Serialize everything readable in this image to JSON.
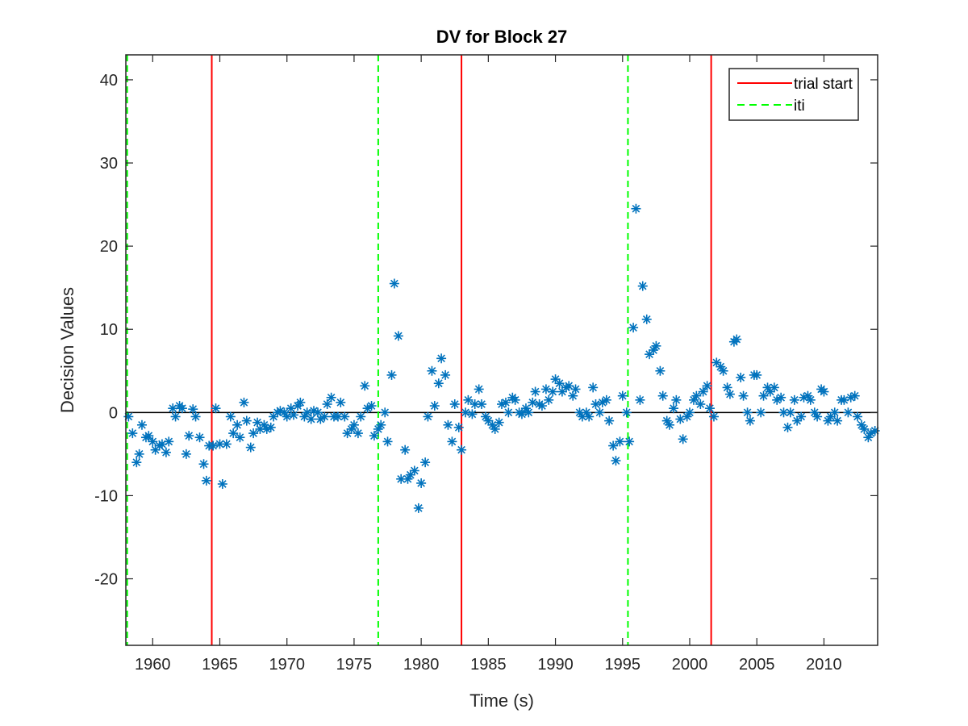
{
  "chart_data": {
    "type": "scatter",
    "title": "DV for Block 27",
    "xlabel": "Time (s)",
    "ylabel": "Decision Values",
    "xlim": [
      1958,
      2014
    ],
    "ylim": [
      -28,
      43
    ],
    "xticks": [
      1960,
      1965,
      1970,
      1975,
      1980,
      1985,
      1990,
      1995,
      2000,
      2005,
      2010
    ],
    "xtick_labels": [
      "1960",
      "1965",
      "1970",
      "1975",
      "1980",
      "1985",
      "1990",
      "1995",
      "2000",
      "2005",
      "2010"
    ],
    "yticks": [
      -20,
      -10,
      0,
      10,
      20,
      30,
      40
    ],
    "ytick_labels": [
      "-20",
      "-10",
      "0",
      "10",
      "20",
      "30",
      "40"
    ],
    "grid": false,
    "legend_position": "top-right",
    "legend": [
      {
        "label": "trial start",
        "color": "#ff0000",
        "style": "solid"
      },
      {
        "label": "iti",
        "color": "#00ff00",
        "style": "dashed"
      }
    ],
    "zero_line": {
      "y": 0,
      "color": "#000000"
    },
    "trial_start_lines": [
      1964.4,
      1983.0,
      2001.6
    ],
    "iti_lines": [
      1958.1,
      1976.8,
      1995.4
    ],
    "marker_color": "#0072bd",
    "marker": "asterisk",
    "points": [
      [
        1958.2,
        -0.5
      ],
      [
        1958.5,
        -2.5
      ],
      [
        1958.8,
        -6.0
      ],
      [
        1959.0,
        -5.0
      ],
      [
        1959.2,
        -1.5
      ],
      [
        1959.5,
        -3.0
      ],
      [
        1959.7,
        -2.8
      ],
      [
        1960.0,
        -3.5
      ],
      [
        1960.2,
        -4.5
      ],
      [
        1960.5,
        -4.0
      ],
      [
        1960.7,
        -3.8
      ],
      [
        1961.0,
        -4.8
      ],
      [
        1961.2,
        -3.5
      ],
      [
        1961.5,
        0.5
      ],
      [
        1961.7,
        -0.5
      ],
      [
        1962.0,
        0.8
      ],
      [
        1962.2,
        0.5
      ],
      [
        1962.5,
        -5.0
      ],
      [
        1962.7,
        -2.8
      ],
      [
        1963.0,
        0.4
      ],
      [
        1963.2,
        -0.5
      ],
      [
        1963.5,
        -3.0
      ],
      [
        1963.8,
        -6.2
      ],
      [
        1964.0,
        -8.2
      ],
      [
        1964.2,
        -4.0
      ],
      [
        1964.5,
        -4.0
      ],
      [
        1964.7,
        0.5
      ],
      [
        1965.0,
        -3.8
      ],
      [
        1965.2,
        -8.6
      ],
      [
        1965.5,
        -3.8
      ],
      [
        1965.8,
        -0.5
      ],
      [
        1966.0,
        -2.5
      ],
      [
        1966.3,
        -1.5
      ],
      [
        1966.5,
        -3.0
      ],
      [
        1966.8,
        1.2
      ],
      [
        1967.0,
        -1.0
      ],
      [
        1967.3,
        -4.2
      ],
      [
        1967.5,
        -2.5
      ],
      [
        1967.8,
        -1.2
      ],
      [
        1968.0,
        -2.0
      ],
      [
        1968.3,
        -1.5
      ],
      [
        1968.5,
        -2.0
      ],
      [
        1968.8,
        -1.8
      ],
      [
        1969.0,
        -0.5
      ],
      [
        1969.3,
        0.0
      ],
      [
        1969.5,
        0.2
      ],
      [
        1969.8,
        0.0
      ],
      [
        1970.0,
        -0.5
      ],
      [
        1970.3,
        0.5
      ],
      [
        1970.5,
        -0.3
      ],
      [
        1970.8,
        0.8
      ],
      [
        1971.0,
        1.2
      ],
      [
        1971.3,
        -0.5
      ],
      [
        1971.5,
        0.0
      ],
      [
        1971.8,
        -0.8
      ],
      [
        1972.0,
        0.2
      ],
      [
        1972.3,
        0.0
      ],
      [
        1972.5,
        -0.8
      ],
      [
        1972.8,
        -0.5
      ],
      [
        1973.0,
        1.0
      ],
      [
        1973.3,
        1.8
      ],
      [
        1973.5,
        -0.5
      ],
      [
        1973.8,
        -0.5
      ],
      [
        1974.0,
        1.2
      ],
      [
        1974.3,
        -0.5
      ],
      [
        1974.5,
        -2.5
      ],
      [
        1974.8,
        -2.0
      ],
      [
        1975.0,
        -1.5
      ],
      [
        1975.3,
        -2.5
      ],
      [
        1975.5,
        -0.5
      ],
      [
        1975.8,
        3.2
      ],
      [
        1976.0,
        0.5
      ],
      [
        1976.3,
        0.8
      ],
      [
        1976.5,
        -2.8
      ],
      [
        1976.8,
        -2.0
      ],
      [
        1977.0,
        -1.5
      ],
      [
        1977.3,
        0.0
      ],
      [
        1977.5,
        -3.5
      ],
      [
        1977.8,
        4.5
      ],
      [
        1978.0,
        15.5
      ],
      [
        1978.3,
        9.2
      ],
      [
        1978.5,
        -8.0
      ],
      [
        1978.8,
        -4.5
      ],
      [
        1979.0,
        -8.0
      ],
      [
        1979.2,
        -7.5
      ],
      [
        1979.5,
        -7.0
      ],
      [
        1979.8,
        -11.5
      ],
      [
        1980.0,
        -8.5
      ],
      [
        1980.3,
        -6.0
      ],
      [
        1980.5,
        -0.5
      ],
      [
        1980.8,
        5.0
      ],
      [
        1981.0,
        0.8
      ],
      [
        1981.3,
        3.5
      ],
      [
        1981.5,
        6.5
      ],
      [
        1981.8,
        4.5
      ],
      [
        1982.0,
        -1.5
      ],
      [
        1982.3,
        -3.5
      ],
      [
        1982.5,
        1.0
      ],
      [
        1982.8,
        -1.8
      ],
      [
        1983.0,
        -4.5
      ],
      [
        1983.3,
        0.0
      ],
      [
        1983.5,
        1.5
      ],
      [
        1983.8,
        -0.2
      ],
      [
        1984.0,
        1.0
      ],
      [
        1984.3,
        2.8
      ],
      [
        1984.5,
        1.0
      ],
      [
        1984.8,
        -0.5
      ],
      [
        1985.0,
        -1.0
      ],
      [
        1985.3,
        -1.5
      ],
      [
        1985.5,
        -2.0
      ],
      [
        1985.8,
        -1.2
      ],
      [
        1986.0,
        1.0
      ],
      [
        1986.3,
        1.2
      ],
      [
        1986.5,
        0.0
      ],
      [
        1986.8,
        1.8
      ],
      [
        1987.0,
        1.5
      ],
      [
        1987.3,
        0.0
      ],
      [
        1987.5,
        -0.2
      ],
      [
        1987.8,
        0.5
      ],
      [
        1988.0,
        0.0
      ],
      [
        1988.3,
        1.2
      ],
      [
        1988.5,
        2.5
      ],
      [
        1988.8,
        1.0
      ],
      [
        1989.0,
        0.8
      ],
      [
        1989.3,
        2.8
      ],
      [
        1989.5,
        1.5
      ],
      [
        1989.8,
        2.5
      ],
      [
        1990.0,
        4.0
      ],
      [
        1990.3,
        3.5
      ],
      [
        1990.5,
        2.5
      ],
      [
        1990.8,
        3.0
      ],
      [
        1991.0,
        3.2
      ],
      [
        1991.3,
        2.0
      ],
      [
        1991.5,
        2.8
      ],
      [
        1991.8,
        0.0
      ],
      [
        1992.0,
        -0.5
      ],
      [
        1992.3,
        0.0
      ],
      [
        1992.5,
        -0.5
      ],
      [
        1992.8,
        3.0
      ],
      [
        1993.0,
        1.0
      ],
      [
        1993.3,
        0.0
      ],
      [
        1993.5,
        1.2
      ],
      [
        1993.8,
        1.5
      ],
      [
        1994.0,
        -1.0
      ],
      [
        1994.3,
        -4.0
      ],
      [
        1994.5,
        -5.8
      ],
      [
        1994.8,
        -3.5
      ],
      [
        1995.0,
        2.0
      ],
      [
        1995.3,
        0.0
      ],
      [
        1995.5,
        -3.5
      ],
      [
        1995.8,
        10.2
      ],
      [
        1996.0,
        24.5
      ],
      [
        1996.3,
        1.5
      ],
      [
        1996.5,
        15.2
      ],
      [
        1996.8,
        11.2
      ],
      [
        1997.0,
        7.0
      ],
      [
        1997.3,
        7.5
      ],
      [
        1997.5,
        8.0
      ],
      [
        1997.8,
        5.0
      ],
      [
        1998.0,
        2.0
      ],
      [
        1998.3,
        -1.0
      ],
      [
        1998.5,
        -1.5
      ],
      [
        1998.8,
        0.5
      ],
      [
        1999.0,
        1.5
      ],
      [
        1999.3,
        -0.8
      ],
      [
        1999.5,
        -3.2
      ],
      [
        1999.8,
        -0.5
      ],
      [
        2000.0,
        0.0
      ],
      [
        2000.3,
        1.5
      ],
      [
        2000.5,
        2.0
      ],
      [
        2000.8,
        1.0
      ],
      [
        2001.0,
        2.5
      ],
      [
        2001.3,
        3.2
      ],
      [
        2001.5,
        0.5
      ],
      [
        2001.8,
        -0.5
      ],
      [
        2002.0,
        6.0
      ],
      [
        2002.3,
        5.5
      ],
      [
        2002.5,
        5.0
      ],
      [
        2002.8,
        3.0
      ],
      [
        2003.0,
        2.2
      ],
      [
        2003.3,
        8.5
      ],
      [
        2003.5,
        8.8
      ],
      [
        2003.8,
        4.2
      ],
      [
        2004.0,
        2.0
      ],
      [
        2004.3,
        0.0
      ],
      [
        2004.5,
        -1.0
      ],
      [
        2004.8,
        4.5
      ],
      [
        2005.0,
        4.5
      ],
      [
        2005.3,
        0.0
      ],
      [
        2005.5,
        2.0
      ],
      [
        2005.8,
        3.0
      ],
      [
        2006.0,
        2.5
      ],
      [
        2006.3,
        3.0
      ],
      [
        2006.5,
        1.5
      ],
      [
        2006.8,
        1.8
      ],
      [
        2007.0,
        0.0
      ],
      [
        2007.3,
        -1.8
      ],
      [
        2007.5,
        0.0
      ],
      [
        2007.8,
        1.5
      ],
      [
        2008.0,
        -1.0
      ],
      [
        2008.3,
        -0.5
      ],
      [
        2008.5,
        1.8
      ],
      [
        2008.8,
        2.0
      ],
      [
        2009.0,
        1.5
      ],
      [
        2009.3,
        0.0
      ],
      [
        2009.5,
        -0.5
      ],
      [
        2009.8,
        2.8
      ],
      [
        2010.0,
        2.5
      ],
      [
        2010.3,
        -1.0
      ],
      [
        2010.5,
        -0.5
      ],
      [
        2010.8,
        0.0
      ],
      [
        2011.0,
        -1.0
      ],
      [
        2011.3,
        1.5
      ],
      [
        2011.5,
        1.5
      ],
      [
        2011.8,
        0.0
      ],
      [
        2012.0,
        1.8
      ],
      [
        2012.3,
        2.0
      ],
      [
        2012.5,
        -0.5
      ],
      [
        2012.8,
        -1.5
      ],
      [
        2013.0,
        -2.0
      ],
      [
        2013.3,
        -3.0
      ],
      [
        2013.5,
        -2.5
      ],
      [
        2013.8,
        -2.2
      ]
    ]
  }
}
